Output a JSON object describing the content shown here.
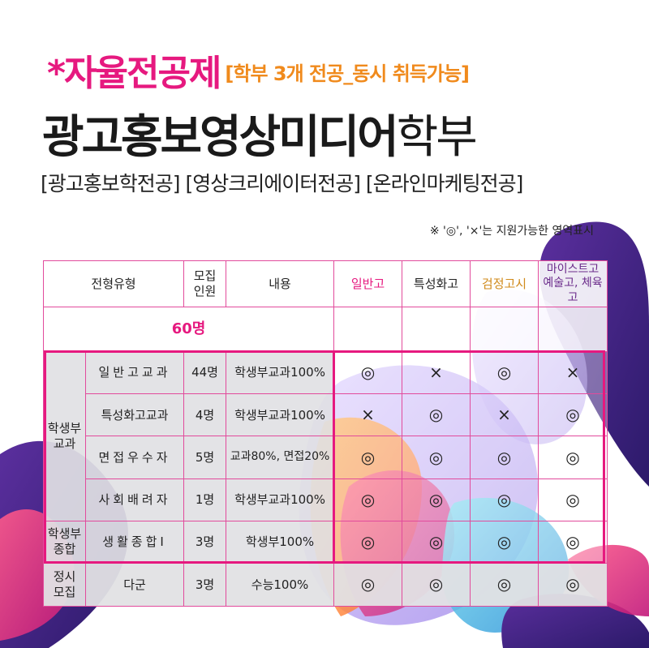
{
  "title": {
    "star_text": "*자율전공제",
    "sub_text": "[학부 3개 전공_동시 취득가능]",
    "dept_bold": "광고홍보영상미디어",
    "dept_light": "학부"
  },
  "majors": "[광고홍보학전공] [영상크리에이터전공] [온라인마케팅전공]",
  "legend": "※ '◎', '×'는 지원가능한 영역표시",
  "colors": {
    "accent_pink": "#e6197f",
    "accent_orange": "#f08a1c"
  },
  "table": {
    "headers": {
      "type": "전형유형",
      "quota_line1": "모집",
      "quota_line2": "인원",
      "content": "내용",
      "general": "일반고",
      "special": "특성화고",
      "ged": "검정고시",
      "meister_line1": "마이스트고",
      "meister_line2": "예술고, 체육고"
    },
    "total_quota": "60명",
    "groups": {
      "gyogwa_line1": "학생부",
      "gyogwa_line2": "교과",
      "jonghap_line1": "학생부",
      "jonghap_line2": "종합",
      "jeongsi_line1": "정시",
      "jeongsi_line2": "모집"
    },
    "rows": [
      {
        "name": "일반고교과",
        "quota": "44명",
        "content": "학생부교과100%",
        "general": "◎",
        "special": "×",
        "ged": "◎",
        "meister": "×"
      },
      {
        "name": "특성화고교과",
        "quota": "4명",
        "content": "학생부교과100%",
        "general": "×",
        "special": "◎",
        "ged": "×",
        "meister": "◎"
      },
      {
        "name": "면접우수자",
        "quota": "5명",
        "content": "교과80%, 면접20%",
        "general": "◎",
        "special": "◎",
        "ged": "◎",
        "meister": "◎"
      },
      {
        "name": "사회배려자",
        "quota": "1명",
        "content": "학생부교과100%",
        "general": "◎",
        "special": "◎",
        "ged": "◎",
        "meister": "◎"
      },
      {
        "name": "생활종합Ⅰ",
        "quota": "3명",
        "content": "학생부100%",
        "general": "◎",
        "special": "◎",
        "ged": "◎",
        "meister": "◎"
      },
      {
        "name": "다군",
        "quota": "3명",
        "content": "수능100%",
        "general": "◎",
        "special": "◎",
        "ged": "◎",
        "meister": "◎"
      }
    ]
  }
}
